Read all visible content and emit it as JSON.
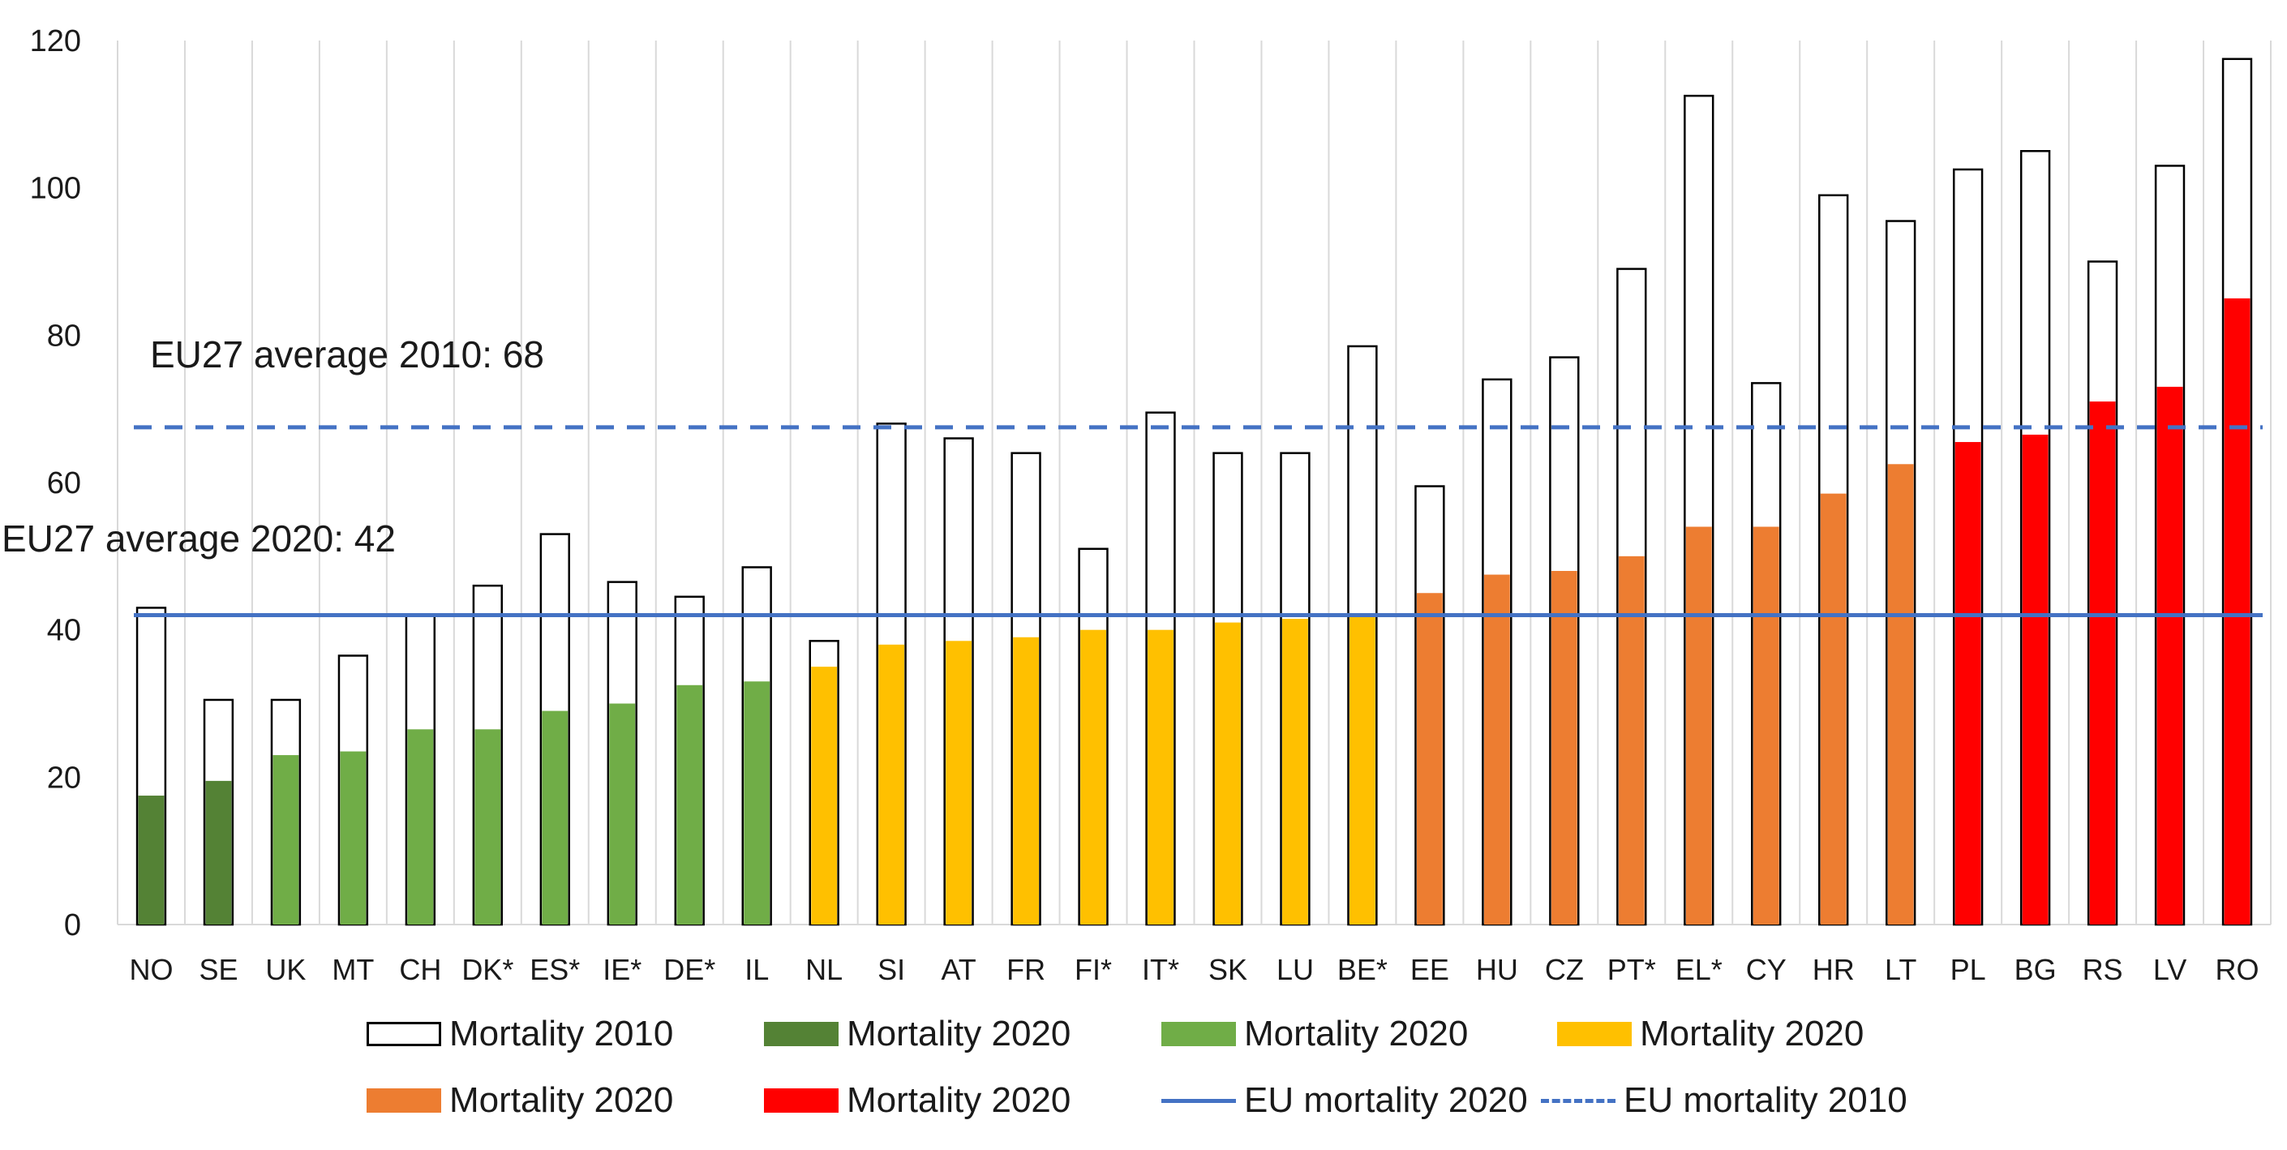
{
  "colors": {
    "dark_green": "#548235",
    "light_green": "#70AD47",
    "yellow": "#FFC000",
    "orange": "#ED7D31",
    "red": "#FF0000",
    "eu_line": "#4472C4",
    "outline": "#000000",
    "grid": "#d9d9d9"
  },
  "annotations": {
    "avg_2010": "EU27 average 2010: 68",
    "avg_2020": "EU27 average 2020: 42"
  },
  "legend": {
    "mortality_2010": "Mortality 2010",
    "mortality_2020_dark_green": "Mortality 2020",
    "mortality_2020_light_green": "Mortality 2020",
    "mortality_2020_yellow": "Mortality 2020",
    "mortality_2020_orange": "Mortality 2020",
    "mortality_2020_red": "Mortality 2020",
    "eu_2020": "EU mortality 2020",
    "eu_2010": "EU mortality 2010"
  },
  "chart_data": {
    "type": "bar",
    "title": "",
    "xlabel": "",
    "ylabel": "",
    "ylim": [
      0,
      120
    ],
    "yticks": [
      0,
      20,
      40,
      60,
      80,
      100,
      120
    ],
    "grid": "vertical",
    "legend_position": "bottom",
    "categories": [
      "NO",
      "SE",
      "UK",
      "MT",
      "CH",
      "DK*",
      "ES*",
      "IE*",
      "DE*",
      "IL",
      "NL",
      "SI",
      "AT",
      "FR",
      "FI*",
      "IT*",
      "SK",
      "LU",
      "BE*",
      "EE",
      "HU",
      "CZ",
      "PT*",
      "EL*",
      "CY",
      "HR",
      "LT",
      "PL",
      "BG",
      "RS",
      "LV",
      "RO"
    ],
    "series": [
      {
        "name": "Mortality 2010",
        "style": "outline",
        "values": [
          43,
          30.5,
          30.5,
          36.5,
          42,
          46,
          53,
          46.5,
          44.5,
          48.5,
          38.5,
          68,
          66,
          64,
          51,
          69.5,
          64,
          64,
          78.5,
          59.5,
          74,
          77,
          89,
          112.5,
          73.5,
          99,
          95.5,
          102.5,
          105,
          90,
          103,
          117.5
        ]
      },
      {
        "name": "Mortality 2020",
        "style": "filled",
        "values": [
          17.5,
          19.5,
          23,
          23.5,
          26.5,
          26.5,
          29,
          30,
          32.5,
          33,
          35,
          38,
          38.5,
          39,
          40,
          40,
          41,
          41.5,
          42,
          45,
          47.5,
          48,
          50,
          54,
          54,
          58.5,
          62.5,
          65.5,
          66.5,
          71,
          73,
          85
        ],
        "color_groups": [
          "dark_green",
          "dark_green",
          "light_green",
          "light_green",
          "light_green",
          "light_green",
          "light_green",
          "light_green",
          "light_green",
          "light_green",
          "yellow",
          "yellow",
          "yellow",
          "yellow",
          "yellow",
          "yellow",
          "yellow",
          "yellow",
          "yellow",
          "orange",
          "orange",
          "orange",
          "orange",
          "orange",
          "orange",
          "orange",
          "orange",
          "red",
          "red",
          "red",
          "red",
          "red"
        ]
      },
      {
        "name": "EU mortality 2020",
        "style": "solid-line",
        "value": 42
      },
      {
        "name": "EU mortality 2010",
        "style": "dashed-line",
        "value": 67.5
      }
    ]
  }
}
